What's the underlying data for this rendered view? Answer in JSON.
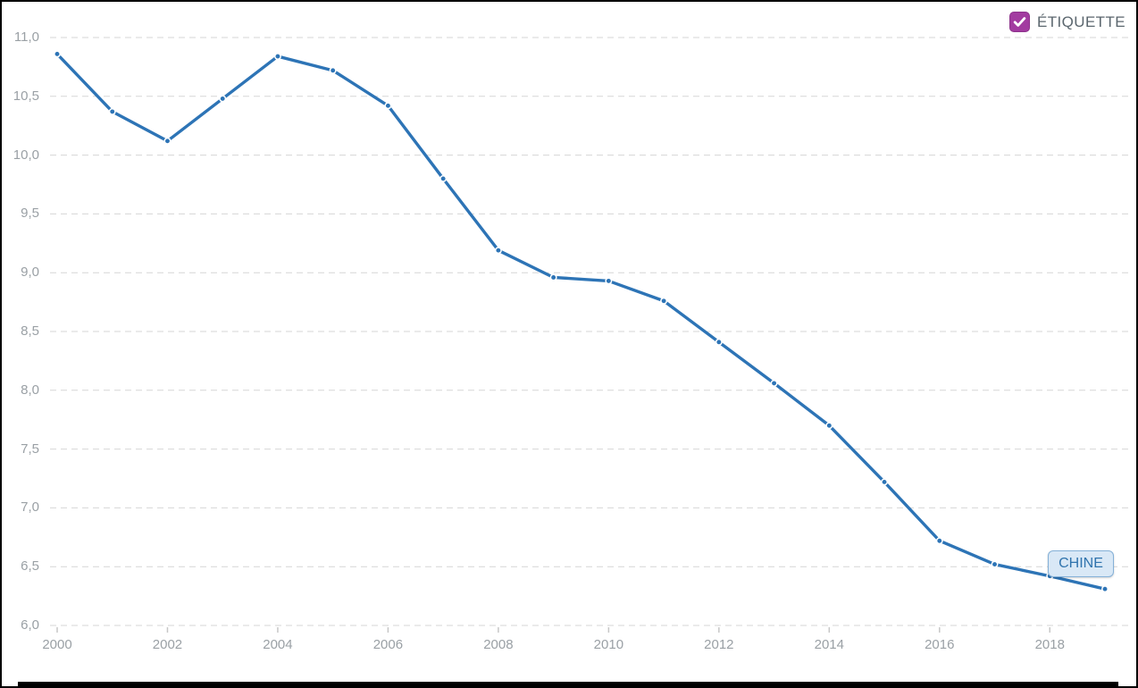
{
  "legend": {
    "checkbox_label": "ÉTIQUETTE",
    "checkbox_checked": true,
    "checkbox_color": "#a23ba0",
    "label_color": "#5b666e"
  },
  "series_end_label": {
    "text": "CHINE",
    "background": "#d9e8f6",
    "border_color": "#85b1d8",
    "text_color": "#2f73ad"
  },
  "chart_data": {
    "type": "line",
    "title": "",
    "xlabel": "",
    "ylabel": "",
    "x": [
      2000,
      2001,
      2002,
      2003,
      2004,
      2005,
      2006,
      2007,
      2008,
      2009,
      2010,
      2011,
      2012,
      2013,
      2014,
      2015,
      2016,
      2017,
      2018,
      2019
    ],
    "series": [
      {
        "name": "CHINE",
        "color": "#2d74b6",
        "values": [
          10.86,
          10.37,
          10.12,
          10.48,
          10.84,
          10.72,
          10.42,
          9.8,
          9.19,
          8.96,
          8.93,
          8.76,
          8.41,
          8.06,
          7.7,
          7.22,
          6.72,
          6.52,
          6.42,
          6.31
        ]
      }
    ],
    "xlim": [
      2000,
      2019
    ],
    "ylim": [
      6.0,
      11.0
    ],
    "xtick_values": [
      2000,
      2002,
      2004,
      2006,
      2008,
      2010,
      2012,
      2014,
      2016,
      2018
    ],
    "ytick_values": [
      6.0,
      6.5,
      7.0,
      7.5,
      8.0,
      8.5,
      9.0,
      9.5,
      10.0,
      10.5,
      11.0
    ],
    "ytick_labels": [
      "6,0",
      "6,5",
      "7,0",
      "7,5",
      "8,0",
      "8,5",
      "9,0",
      "9,5",
      "10,0",
      "10,5",
      "11,0"
    ],
    "decimal_separator": ",",
    "grid": "horizontal-dashed",
    "gridline_color": "#d6d6d6",
    "x_tick_mark_color": "#c7c7c7",
    "axis_label_color": "#9aa0a5",
    "marker": "dot-with-white-ring",
    "legend_position": "top-right"
  }
}
